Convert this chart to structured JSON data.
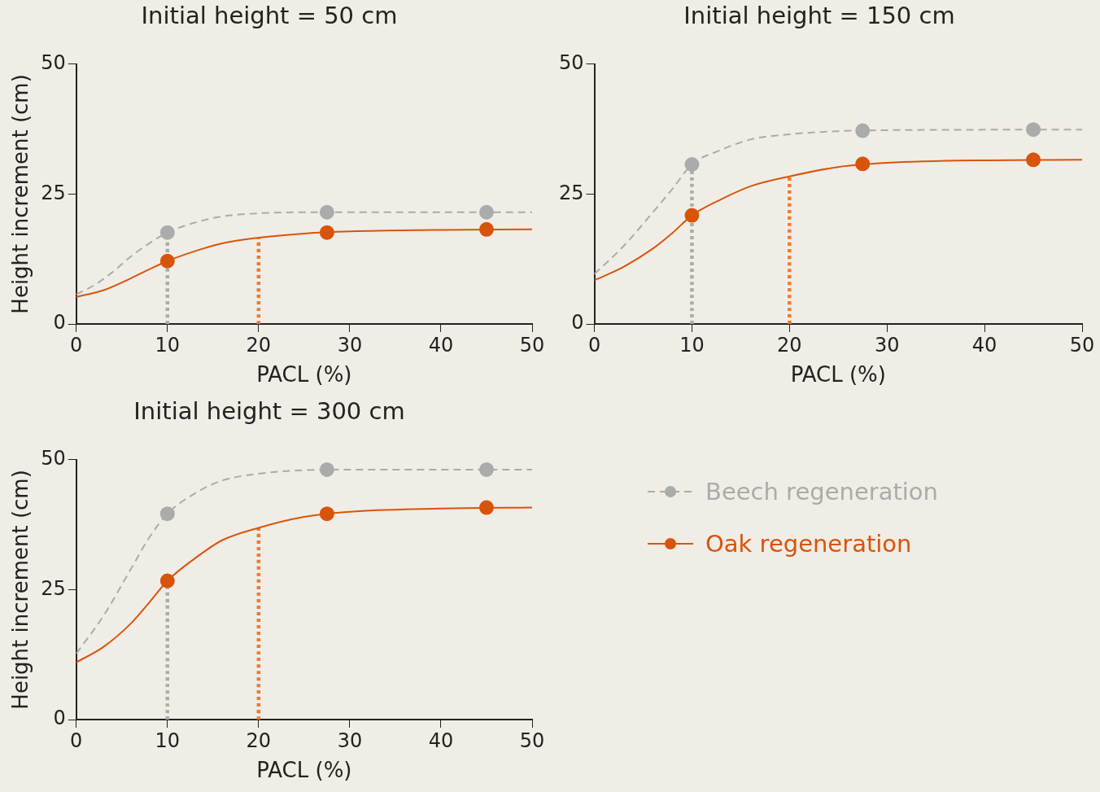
{
  "chart_data": [
    {
      "type": "line",
      "title": "Initial height = 50 cm",
      "xlabel": "PACL (%)",
      "ylabel": "Height increment (cm)",
      "xlim": [
        0,
        50
      ],
      "xticks": [
        0,
        10,
        20,
        30,
        40,
        50
      ],
      "ylim": [
        0,
        50
      ],
      "yticks": [
        0,
        25,
        50
      ],
      "grid": false,
      "series": [
        {
          "type": "line",
          "color": "#ababab",
          "line_style": "dashed",
          "marker": "none",
          "x": [
            0,
            2,
            4,
            6,
            8,
            10,
            13,
            16,
            20,
            25,
            30,
            50
          ],
          "values": [
            5.7,
            7.5,
            10,
            13,
            15.5,
            17.6,
            19.5,
            20.7,
            21.3,
            21.5,
            21.5,
            21.5
          ]
        },
        {
          "type": "line",
          "color": "#d9540b",
          "line_style": "solid",
          "marker": "none",
          "x": [
            0,
            3,
            6,
            8,
            10,
            13,
            16,
            20,
            25,
            30,
            40,
            50
          ],
          "values": [
            5.2,
            6.5,
            8.8,
            10.5,
            12.1,
            14,
            15.5,
            16.6,
            17.4,
            17.8,
            18.1,
            18.2
          ]
        },
        {
          "type": "line",
          "color": "#ababab",
          "line_style": "dotted",
          "marker": "none",
          "x": [
            10,
            10
          ],
          "values": [
            0,
            17.6
          ]
        },
        {
          "type": "line",
          "color": "#ee7a2e",
          "line_style": "dotted",
          "marker": "none",
          "x": [
            20,
            20
          ],
          "values": [
            0,
            16.6
          ]
        },
        {
          "type": "scatter",
          "color": "#ababab",
          "marker": "circle",
          "x": [
            10,
            27.5,
            45
          ],
          "values": [
            17.6,
            21.5,
            21.5
          ]
        },
        {
          "type": "scatter",
          "color": "#d9540b",
          "marker": "circle",
          "x": [
            10,
            27.5,
            45
          ],
          "values": [
            12.1,
            17.6,
            18.2
          ]
        }
      ]
    },
    {
      "type": "line",
      "title": "Initial height = 150 cm",
      "xlabel": "PACL (%)",
      "xlim": [
        0,
        50
      ],
      "xticks": [
        0,
        10,
        20,
        30,
        40,
        50
      ],
      "ylim": [
        0,
        50
      ],
      "yticks": [
        0,
        25,
        50
      ],
      "grid": false,
      "series": [
        {
          "type": "line",
          "color": "#ababab",
          "line_style": "dashed",
          "marker": "none",
          "x": [
            0,
            3,
            6,
            8,
            10,
            13,
            16,
            20,
            25,
            30,
            50
          ],
          "values": [
            9.6,
            15,
            21.5,
            26,
            30.7,
            33.5,
            35.5,
            36.5,
            37.1,
            37.3,
            37.4
          ]
        },
        {
          "type": "line",
          "color": "#d9540b",
          "line_style": "solid",
          "marker": "none",
          "x": [
            0,
            3,
            6,
            8,
            10,
            13,
            16,
            20,
            25,
            30,
            40,
            50
          ],
          "values": [
            8.4,
            11,
            14.5,
            17.5,
            20.9,
            24,
            26.5,
            28.4,
            30.2,
            31,
            31.5,
            31.6
          ]
        },
        {
          "type": "line",
          "color": "#ababab",
          "line_style": "dotted",
          "marker": "none",
          "x": [
            10,
            10
          ],
          "values": [
            0,
            30.7
          ]
        },
        {
          "type": "line",
          "color": "#ee7a2e",
          "line_style": "dotted",
          "marker": "none",
          "x": [
            20,
            20
          ],
          "values": [
            0,
            28.4
          ]
        },
        {
          "type": "scatter",
          "color": "#ababab",
          "marker": "circle",
          "x": [
            10,
            27.5,
            45
          ],
          "values": [
            30.7,
            37.2,
            37.4
          ]
        },
        {
          "type": "scatter",
          "color": "#d9540b",
          "marker": "circle",
          "x": [
            10,
            27.5,
            45
          ],
          "values": [
            20.9,
            30.8,
            31.6
          ]
        }
      ]
    },
    {
      "type": "line",
      "title": "Initial height = 300 cm",
      "xlabel": "PACL (%)",
      "ylabel": "Height increment (cm)",
      "xlim": [
        0,
        50
      ],
      "xticks": [
        0,
        10,
        20,
        30,
        40,
        50
      ],
      "ylim": [
        0,
        50
      ],
      "yticks": [
        0,
        25,
        50
      ],
      "grid": false,
      "legend": "right",
      "series": [
        {
          "type": "line",
          "name": "Beech regeneration",
          "color": "#ababab",
          "line_style": "dashed",
          "marker": "none",
          "x": [
            0,
            3,
            6,
            8,
            10,
            13,
            16,
            20,
            25,
            30,
            50
          ],
          "values": [
            12.7,
            20,
            29,
            35,
            39.6,
            43.5,
            46,
            47.3,
            48,
            48.1,
            48.1
          ]
        },
        {
          "type": "line",
          "name": "Oak regeneration",
          "color": "#d9540b",
          "line_style": "solid",
          "marker": "none",
          "x": [
            0,
            3,
            6,
            8,
            10,
            13,
            16,
            20,
            25,
            30,
            40,
            50
          ],
          "values": [
            11,
            14,
            18.5,
            22.5,
            26.7,
            31,
            34.5,
            36.9,
            39,
            40,
            40.6,
            40.8
          ]
        },
        {
          "type": "line",
          "color": "#ababab",
          "line_style": "dotted",
          "marker": "none",
          "x": [
            10,
            10
          ],
          "values": [
            0,
            26.7
          ]
        },
        {
          "type": "line",
          "color": "#ee7a2e",
          "line_style": "dotted",
          "marker": "none",
          "x": [
            20,
            20
          ],
          "values": [
            0,
            36.9
          ]
        },
        {
          "type": "scatter",
          "color": "#ababab",
          "marker": "circle",
          "x": [
            10,
            27.5,
            45
          ],
          "values": [
            39.6,
            48.1,
            48.1
          ]
        },
        {
          "type": "scatter",
          "color": "#d9540b",
          "marker": "circle",
          "x": [
            10,
            27.5,
            45
          ],
          "values": [
            26.7,
            39.6,
            40.8
          ]
        }
      ]
    }
  ]
}
